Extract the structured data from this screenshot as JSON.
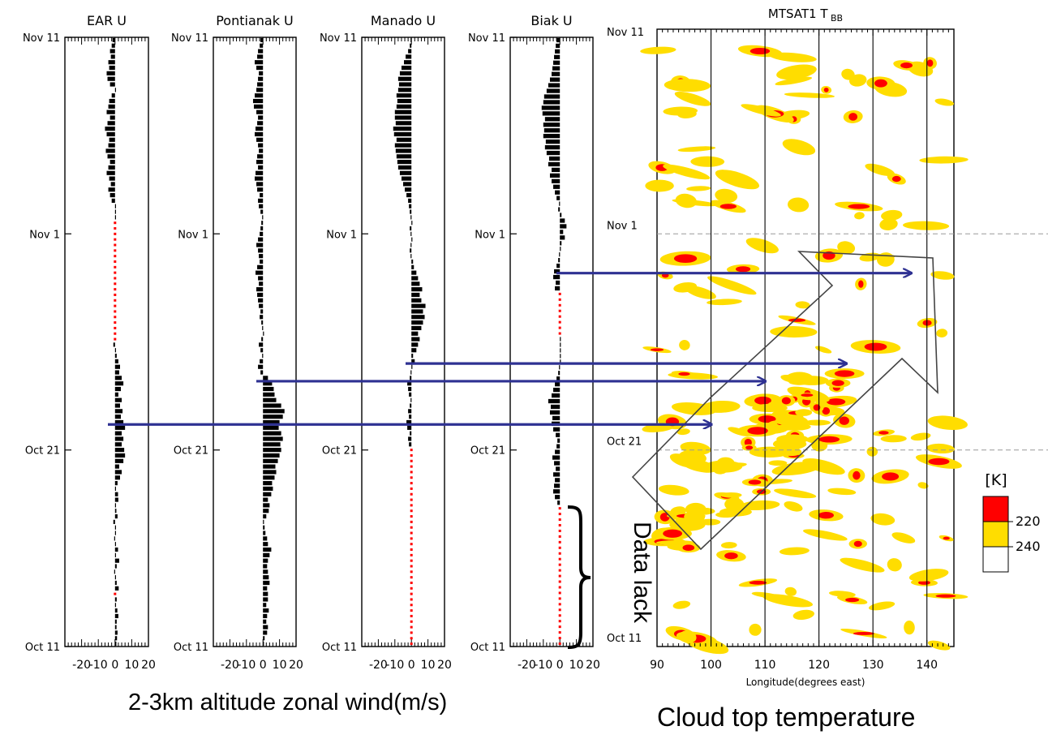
{
  "chart_data": [
    {
      "type": "bar",
      "orientation": "horizontal",
      "title": "EAR U",
      "y_ticks": [
        "Nov 11",
        "Nov 1",
        "Oct 21",
        "Oct 11"
      ],
      "y_range": [
        "Oct 11",
        "Nov 11"
      ],
      "x_ticks": [
        "-20",
        "-10",
        "0",
        "10",
        "20"
      ],
      "xlim": [
        -30,
        20
      ],
      "missing_ranges": [
        [
          0.085,
          0.095
        ],
        [
          0.5,
          0.7
        ]
      ],
      "values": [
        0.8,
        1.2,
        1.5,
        0.9,
        1.0,
        2.0,
        1.4,
        0.6,
        1.0,
        1.8,
        2.2,
        1.0,
        0.5,
        -0.5,
        1.0,
        2.5,
        0.4,
        1.8,
        0.5,
        -0.5,
        0.3,
        0.0,
        -1.0,
        1.5,
        0.8,
        0.3,
        2.0,
        1.8,
        0.5,
        1.5,
        3.0,
        4.0,
        2.5,
        5.0,
        6.0,
        5.5,
        4.0,
        5.0,
        4.0,
        6.0,
        5.0,
        3.5,
        4.5,
        3.0,
        4.0,
        2.0,
        3.5,
        5.0,
        4.0,
        2.5,
        3.0,
        2.0,
        1.0,
        0.0,
        -1.0,
        -2.5,
        -3.0,
        -1.5,
        0,
        0,
        0,
        0,
        0,
        0,
        0,
        0,
        0,
        0,
        0,
        0,
        0,
        0,
        0,
        0,
        0,
        0,
        0,
        0,
        0,
        0,
        -2.0,
        -3.0,
        -4.0,
        -2.5,
        -3.5,
        -5.0,
        -4.0,
        -3.0,
        -4.5,
        -5.5,
        -4.0,
        -3.5,
        -5.0,
        -6.0,
        -4.5,
        -3.0,
        -5.0,
        -4.0,
        -3.5,
        -2.0,
        0,
        -3.0,
        -4.5,
        -5.0,
        -3.5,
        -4.0,
        -2.5,
        -3.0,
        -2.0,
        -1.5
      ]
    },
    {
      "type": "bar",
      "orientation": "horizontal",
      "title": "Pontianak U",
      "y_ticks": [
        "Nov 11",
        "Nov 1",
        "Oct 21",
        "Oct 11"
      ],
      "y_range": [
        "Oct 11",
        "Nov 11"
      ],
      "x_ticks": [
        "-20",
        "-10",
        "0",
        "10",
        "20"
      ],
      "xlim": [
        -30,
        20
      ],
      "missing_ranges": [],
      "values": [
        0.5,
        1.0,
        2.5,
        3.0,
        2.0,
        2.5,
        3.5,
        2.0,
        3.0,
        3.0,
        2.5,
        4.0,
        3.5,
        3.0,
        2.5,
        3.0,
        4.0,
        5.0,
        3.0,
        2.5,
        1.5,
        1.0,
        0.5,
        2.0,
        3.5,
        4.0,
        3.0,
        5.0,
        6.0,
        5.5,
        7.0,
        8.0,
        7.5,
        9.0,
        10.0,
        11.0,
        10.5,
        12.0,
        11.0,
        9.5,
        10.0,
        12.0,
        13.0,
        11.0,
        8.0,
        7.0,
        6.5,
        5.5,
        3.0,
        -1.5,
        -3.0,
        -2.0,
        -0.5,
        -1.5,
        -2.5,
        -1.0,
        0.5,
        -0.5,
        -1.0,
        -2.0,
        -1.5,
        -2.5,
        -3.0,
        -3.5,
        -4.0,
        -2.5,
        -3.0,
        -4.5,
        -3.5,
        -2.0,
        -2.5,
        -3.0,
        -4.0,
        -3.0,
        -2.0,
        -1.5,
        -1.0,
        -0.5,
        -1.5,
        -2.5,
        -3.0,
        -2.0,
        -3.5,
        -4.0,
        -5.0,
        -4.5,
        -3.0,
        -4.0,
        -3.5,
        -2.5,
        -3.0,
        -4.0,
        -5.0,
        -4.5,
        -3.5,
        -3.0,
        -4.0,
        -5.5,
        -6.0,
        -5.0,
        -4.0,
        -3.5,
        -3.0,
        -2.5,
        -4.0,
        -5.0,
        -3.5,
        -3.0,
        -2.0,
        -1.5
      ]
    },
    {
      "type": "bar",
      "orientation": "horizontal",
      "title": "Manado U",
      "y_ticks": [
        "Nov 11",
        "Nov 1",
        "Oct 21",
        "Oct 11"
      ],
      "y_range": [
        "Oct 11",
        "Nov 11"
      ],
      "x_ticks": [
        "-20",
        "-10",
        "0",
        "10",
        "20"
      ],
      "xlim": [
        -30,
        20
      ],
      "missing_ranges": [
        [
          0.0,
          0.33
        ]
      ],
      "values": [
        0,
        0,
        0,
        0,
        0,
        0,
        0,
        0,
        0,
        0,
        0,
        0,
        0,
        0,
        0,
        0,
        0,
        0,
        0,
        0,
        0,
        0,
        0,
        0,
        0,
        0,
        0,
        0,
        0,
        0,
        0,
        0,
        0,
        0,
        0,
        0,
        -1.5,
        -2.0,
        -1.0,
        -2.5,
        -3.0,
        -1.5,
        -2.0,
        -1.0,
        -0.5,
        -1.5,
        -2.0,
        -2.5,
        -1.0,
        -0.5,
        0.5,
        2.0,
        1.0,
        3.0,
        4.0,
        5.0,
        4.0,
        6.0,
        7.0,
        8.0,
        7.0,
        8.5,
        6.0,
        5.0,
        6.5,
        5.0,
        4.0,
        3.0,
        1.5,
        1.0,
        -0.5,
        -1.0,
        -0.5,
        0.0,
        -0.5,
        -1.0,
        0.5,
        -0.5,
        -1.0,
        -1.5,
        -2.0,
        -3.0,
        -4.0,
        -5.0,
        -6.0,
        -7.0,
        -8.0,
        -8.5,
        -9.0,
        -9.5,
        -10.0,
        -9.0,
        -10.5,
        -11.0,
        -9.5,
        -10.0,
        -10.0,
        -9.0,
        -8.5,
        -9.0,
        -8.0,
        -7.5,
        -8.0,
        -7.0,
        -6.0,
        -4.5,
        -3.5,
        -2.0,
        -1.0,
        -0.5
      ]
    },
    {
      "type": "bar",
      "orientation": "horizontal",
      "title": "Biak U",
      "y_ticks": [
        "Nov 11",
        "Nov 1",
        "Oct 21",
        "Oct 11"
      ],
      "y_range": [
        "Oct 11",
        "Nov 11"
      ],
      "x_ticks": [
        "-20",
        "-10",
        "0",
        "10",
        "20"
      ],
      "xlim": [
        -30,
        20
      ],
      "missing_ranges": [
        [
          0.0,
          0.23
        ],
        [
          0.51,
          0.58
        ]
      ],
      "values": [
        0,
        0,
        0,
        0,
        0,
        0,
        0,
        0,
        0,
        0,
        0,
        0,
        0,
        0,
        0,
        0,
        0,
        0,
        0,
        0,
        0,
        0,
        0,
        0,
        0,
        -1.5,
        -3.0,
        -4.0,
        -3.5,
        -3.0,
        -4.0,
        -2.5,
        -3.5,
        -4.5,
        -3.0,
        -2.0,
        -1.5,
        -2.5,
        -4.0,
        -5.0,
        -4.5,
        -6.0,
        -5.5,
        -7.0,
        -5.0,
        -4.0,
        -3.0,
        -2.0,
        -1.0,
        -0.5,
        0,
        0,
        0,
        0,
        0,
        0,
        0,
        0,
        0,
        0,
        -1.0,
        -2.0,
        -1.5,
        -3.0,
        -2.5,
        -4.0,
        -3.5,
        -2.0,
        -1.0,
        -0.5,
        0.5,
        1.0,
        3.0,
        2.0,
        4.0,
        3.0,
        1.0,
        -1.0,
        -0.5,
        -2.0,
        -3.0,
        -4.0,
        -5.0,
        -6.0,
        -5.0,
        -7.0,
        -6.5,
        -8.0,
        -9.0,
        -8.5,
        -10.0,
        -9.5,
        -10.0,
        -9.0,
        -10.5,
        -11.0,
        -10.0,
        -9.5,
        -8.0,
        -7.0,
        -6.0,
        -5.0,
        -4.5,
        -4.0,
        -3.5,
        -3.0,
        -2.5,
        -2.0
      ]
    },
    {
      "type": "heatmap",
      "title": "MTSAT1 T",
      "title_subscript": "BB",
      "xlabel": "Longitude(degrees east)",
      "x_ticks": [
        "90",
        "100",
        "110",
        "120",
        "130",
        "140"
      ],
      "xlim": [
        90,
        145
      ],
      "y_ticks": [
        "Nov 11",
        "Nov 1",
        "Oct 21",
        "Oct 11"
      ],
      "y_range": [
        "Oct 11",
        "Nov 11"
      ],
      "colorbar": {
        "unit": "[K]",
        "levels": [
          {
            "label": "220",
            "color": "#ff0000"
          },
          {
            "label": "240",
            "color": "#ffdd00"
          },
          {
            "label": "",
            "color": "#ffffff"
          }
        ]
      },
      "colors": {
        "cold": "#ff0000",
        "cool": "#ffdd00",
        "arrow": "#2e3192"
      },
      "arrows_from": [
        "EAR U",
        "Pontianak U",
        "Manado U",
        "Biak U"
      ],
      "arrow_targets_lon": [
        100,
        110,
        125,
        137
      ],
      "arrow_days": [
        11.3,
        13.5,
        14.4,
        19.0
      ]
    }
  ],
  "annotations": {
    "data_lack": "Data lack",
    "caption_wind": "2-3km altitude zonal wind(m/s)",
    "caption_cloud": "Cloud top temperature"
  }
}
